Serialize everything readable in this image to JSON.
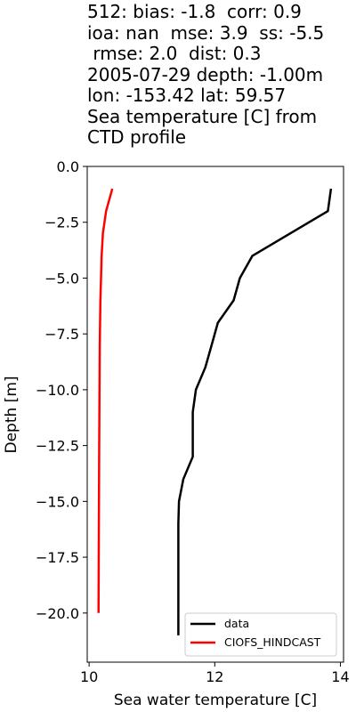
{
  "chart_data": {
    "type": "line",
    "title_lines": [
      "512: bias: -1.8  corr: 0.9",
      "ioa: nan  mse: 3.9  ss: -5.5",
      " rmse: 2.0  dist: 0.3",
      "2005-07-29 depth: -1.00m",
      "lon: -153.42 lat: 59.57",
      "Sea temperature [C] from",
      "CTD profile"
    ],
    "xlabel": "Sea water temperature [C]",
    "ylabel": "Depth [m]",
    "xlim": [
      9.97,
      14.05
    ],
    "ylim": [
      -22.2,
      0
    ],
    "xticks": [
      10,
      12,
      14
    ],
    "xtick_labels": [
      "10",
      "12",
      "14"
    ],
    "yticks": [
      0,
      -2.5,
      -5,
      -7.5,
      -10,
      -12.5,
      -15,
      -17.5,
      -20
    ],
    "ytick_labels": [
      "0.0",
      "−2.5",
      "−5.0",
      "−7.5",
      "−10.0",
      "−12.5",
      "−15.0",
      "−17.5",
      "−20.0"
    ],
    "legend_position": "lower-right",
    "grid": false,
    "series": [
      {
        "name": "data",
        "color": "#000000",
        "x": [
          13.85,
          13.8,
          13.2,
          12.6,
          12.4,
          12.3,
          12.05,
          11.95,
          11.85,
          11.7,
          11.65,
          11.65,
          11.65,
          11.5,
          11.43,
          11.42,
          11.42,
          11.42
        ],
        "y": [
          -1,
          -2,
          -3,
          -4,
          -5,
          -6,
          -7,
          -8,
          -9,
          -10,
          -11,
          -12,
          -13,
          -14,
          -15,
          -16,
          -18,
          -21
        ]
      },
      {
        "name": "CIOFS_HINDCAST",
        "color": "#ff0000",
        "x": [
          10.37,
          10.27,
          10.22,
          10.2,
          10.19,
          10.18,
          10.17,
          10.165,
          10.16,
          10.155,
          10.15
        ],
        "y": [
          -1,
          -2,
          -3,
          -4,
          -5,
          -6,
          -8,
          -10,
          -13,
          -16,
          -20
        ]
      }
    ]
  }
}
